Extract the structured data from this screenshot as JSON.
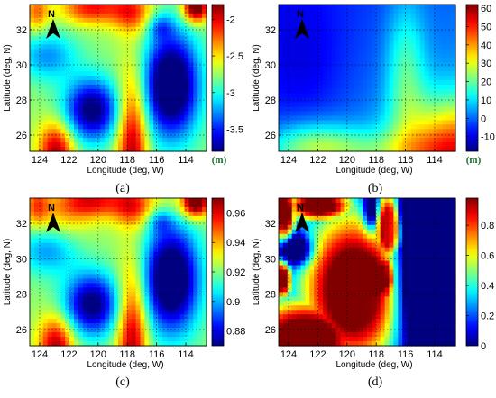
{
  "chart_data": [
    {
      "type": "heatmap",
      "caption": "(a)",
      "xlabel": "Longitude (deg, W)",
      "ylabel": "Latitude (deg, N)",
      "north_label": "N",
      "x_ticks": [
        "124",
        "122",
        "120",
        "118",
        "116",
        "114"
      ],
      "y_ticks": [
        "32",
        "30",
        "28",
        "26"
      ],
      "colorbar": {
        "ticks": [
          "-2",
          "-2.5",
          "-3",
          "-3.5"
        ],
        "range": [
          -3.8,
          -1.8
        ],
        "unit": "(m)"
      }
    },
    {
      "type": "heatmap",
      "caption": "(b)",
      "xlabel": "Longitude (deg, W)",
      "ylabel": "Latitude (deg, N)",
      "north_label": "N",
      "x_ticks": [
        "124",
        "122",
        "120",
        "118",
        "116",
        "114"
      ],
      "y_ticks": [
        "32",
        "30",
        "28",
        "26"
      ],
      "colorbar": {
        "ticks": [
          "60",
          "50",
          "40",
          "30",
          "20",
          "10",
          "0",
          "-10"
        ],
        "range": [
          -18,
          62
        ],
        "unit": "(m)"
      }
    },
    {
      "type": "heatmap",
      "caption": "(c)",
      "xlabel": "Longitude (deg, W)",
      "ylabel": "Latitude (deg, N)",
      "north_label": "N",
      "x_ticks": [
        "124",
        "122",
        "120",
        "118",
        "116",
        "114"
      ],
      "y_ticks": [
        "32",
        "30",
        "28",
        "26"
      ],
      "colorbar": {
        "ticks": [
          "0.96",
          "0.94",
          "0.92",
          "0.9",
          "0.88"
        ],
        "range": [
          0.87,
          0.97
        ],
        "unit": ""
      }
    },
    {
      "type": "heatmap",
      "caption": "(d)",
      "xlabel": "Longitude (deg, W)",
      "ylabel": "Latitude (deg, N)",
      "north_label": "N",
      "x_ticks": [
        "124",
        "122",
        "120",
        "118",
        "116",
        "114"
      ],
      "y_ticks": [
        "32",
        "30",
        "28",
        "26"
      ],
      "colorbar": {
        "ticks": [
          "0.8",
          "0.6",
          "0.4",
          "0.2",
          "0"
        ],
        "range": [
          0,
          0.98
        ],
        "unit": ""
      }
    }
  ]
}
